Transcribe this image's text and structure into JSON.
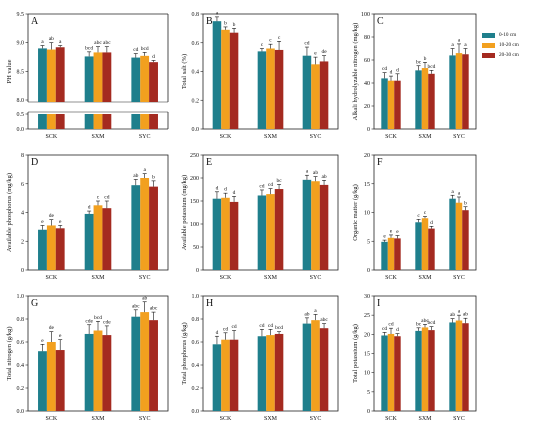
{
  "legend": {
    "items": [
      {
        "label": "0-10 cm",
        "color": "#1f7f8c"
      },
      {
        "label": "10-20 cm",
        "color": "#f2a01f"
      },
      {
        "label": "20-30 cm",
        "color": "#a42a20"
      }
    ]
  },
  "chart_data": [
    {
      "panel": "A",
      "type": "bar",
      "ylabel": "PH value",
      "categories": [
        "SCK",
        "SXM",
        "SYC"
      ],
      "broken_axis": true,
      "yticks_upper": [
        "8.0",
        "8.5",
        "9.0",
        "9.5"
      ],
      "ylim_upper": [
        8.0,
        9.5
      ],
      "yticks_lower": [
        "0.0",
        "0.5"
      ],
      "ylim_lower": [
        0.0,
        0.5
      ],
      "series": [
        {
          "values": [
            8.9,
            8.76,
            8.74
          ],
          "errors": [
            0.05,
            0.08,
            0.07
          ],
          "letters": [
            "a",
            "bcd",
            "cd"
          ]
        },
        {
          "values": [
            8.88,
            8.83,
            8.77
          ],
          "errors": [
            0.12,
            0.1,
            0.06
          ],
          "letters": [
            "ab",
            "abc",
            "bcd"
          ]
        },
        {
          "values": [
            8.92,
            8.83,
            8.66
          ],
          "errors": [
            0.03,
            0.1,
            0.03
          ],
          "letters": [
            "a",
            "abc",
            "d"
          ]
        }
      ]
    },
    {
      "panel": "B",
      "type": "bar",
      "ylabel": "Total salt (%)",
      "categories": [
        "SCK",
        "SXM",
        "SYC"
      ],
      "ylim": [
        0.0,
        0.8
      ],
      "yticks": [
        "0.0",
        "0.2",
        "0.4",
        "0.6",
        "0.8"
      ],
      "series": [
        {
          "values": [
            0.75,
            0.54,
            0.51
          ],
          "errors": [
            0.03,
            0.02,
            0.06
          ],
          "letters": [
            "a",
            "c",
            "cd"
          ]
        },
        {
          "values": [
            0.69,
            0.56,
            0.45
          ],
          "errors": [
            0.02,
            0.03,
            0.05
          ],
          "letters": [
            "b",
            "c",
            "e"
          ]
        },
        {
          "values": [
            0.67,
            0.55,
            0.47
          ],
          "errors": [
            0.03,
            0.06,
            0.04
          ],
          "letters": [
            "b",
            "c",
            "de"
          ]
        }
      ]
    },
    {
      "panel": "C",
      "type": "bar",
      "ylabel": "Alkali hydrolyzable nitrogen (mg/kg)",
      "categories": [
        "SCK",
        "SXM",
        "SYC"
      ],
      "ylim": [
        0,
        100
      ],
      "yticks": [
        "0",
        "20",
        "40",
        "60",
        "80",
        "100"
      ],
      "series": [
        {
          "values": [
            44,
            51,
            64
          ],
          "errors": [
            5,
            4,
            6
          ],
          "letters": [
            "cd",
            "bc",
            "a"
          ]
        },
        {
          "values": [
            42,
            53,
            66
          ],
          "errors": [
            4,
            5,
            8
          ],
          "letters": [
            "d",
            "b",
            "a"
          ]
        },
        {
          "values": [
            42,
            48,
            65
          ],
          "errors": [
            6,
            3,
            5
          ],
          "letters": [
            "d",
            "bcd",
            "a"
          ]
        }
      ]
    },
    {
      "panel": "D",
      "type": "bar",
      "ylabel": "Available phosphorus (mg/kg)",
      "categories": [
        "SCK",
        "SXM",
        "SYC"
      ],
      "ylim": [
        0,
        8
      ],
      "yticks": [
        "0",
        "2",
        "4",
        "6",
        "8"
      ],
      "series": [
        {
          "values": [
            2.8,
            3.9,
            5.9
          ],
          "errors": [
            0.3,
            0.2,
            0.4
          ],
          "letters": [
            "e",
            "d",
            "ab"
          ]
        },
        {
          "values": [
            3.1,
            4.5,
            6.4
          ],
          "errors": [
            0.4,
            0.3,
            0.3
          ],
          "letters": [
            "de",
            "c",
            "a"
          ]
        },
        {
          "values": [
            2.9,
            4.3,
            5.8
          ],
          "errors": [
            0.2,
            0.5,
            0.4
          ],
          "letters": [
            "e",
            "cd",
            "b"
          ]
        }
      ]
    },
    {
      "panel": "E",
      "type": "bar",
      "ylabel": "Available potassium (mg/kg)",
      "categories": [
        "SCK",
        "SXM",
        "SYC"
      ],
      "ylim": [
        0,
        250
      ],
      "yticks": [
        "0",
        "50",
        "100",
        "150",
        "200",
        "250"
      ],
      "series": [
        {
          "values": [
            155,
            162,
            196
          ],
          "errors": [
            15,
            12,
            10
          ],
          "letters": [
            "d",
            "cd",
            "a"
          ]
        },
        {
          "values": [
            157,
            165,
            193
          ],
          "errors": [
            10,
            12,
            10
          ],
          "letters": [
            "d",
            "cd",
            "ab"
          ]
        },
        {
          "values": [
            148,
            176,
            185
          ],
          "errors": [
            12,
            10,
            10
          ],
          "letters": [
            "d",
            "bc",
            "ab"
          ]
        }
      ]
    },
    {
      "panel": "F",
      "type": "bar",
      "ylabel": "Organic matter (g/kg)",
      "categories": [
        "SCK",
        "SXM",
        "SYC"
      ],
      "ylim": [
        0,
        20
      ],
      "yticks": [
        "0",
        "5",
        "10",
        "15",
        "20"
      ],
      "series": [
        {
          "values": [
            4.9,
            8.3,
            12.4
          ],
          "errors": [
            0.3,
            0.5,
            0.6
          ],
          "letters": [
            "e",
            "c",
            "a"
          ]
        },
        {
          "values": [
            5.6,
            9.0,
            11.7
          ],
          "errors": [
            0.5,
            0.3,
            1.0
          ],
          "letters": [
            "e",
            "c",
            "a"
          ]
        },
        {
          "values": [
            5.5,
            7.2,
            10.4
          ],
          "errors": [
            0.5,
            0.4,
            0.6
          ],
          "letters": [
            "e",
            "d",
            "b"
          ]
        }
      ]
    },
    {
      "panel": "G",
      "type": "bar",
      "ylabel": "Total nitrogen (g/kg)",
      "categories": [
        "SCK",
        "SXM",
        "SYC"
      ],
      "ylim": [
        0.0,
        1.0
      ],
      "yticks": [
        "0.0",
        "0.2",
        "0.4",
        "0.6",
        "0.8",
        "1.0"
      ],
      "series": [
        {
          "values": [
            0.52,
            0.67,
            0.82
          ],
          "errors": [
            0.06,
            0.08,
            0.06
          ],
          "letters": [
            "e",
            "cde",
            "abc"
          ]
        },
        {
          "values": [
            0.6,
            0.7,
            0.86
          ],
          "errors": [
            0.09,
            0.08,
            0.09
          ],
          "letters": [
            "de",
            "bcd",
            "ab"
          ]
        },
        {
          "values": [
            0.53,
            0.66,
            0.79
          ],
          "errors": [
            0.09,
            0.08,
            0.07
          ],
          "letters": [
            "e",
            "cde",
            "abc"
          ]
        }
      ]
    },
    {
      "panel": "H",
      "type": "bar",
      "ylabel": "Total phosphorus (g/kg)",
      "categories": [
        "SCK",
        "SXM",
        "SYC"
      ],
      "ylim": [
        0.0,
        1.0
      ],
      "yticks": [
        "0.0",
        "0.2",
        "0.4",
        "0.6",
        "0.8",
        "1.0"
      ],
      "series": [
        {
          "values": [
            0.58,
            0.65,
            0.76
          ],
          "errors": [
            0.07,
            0.06,
            0.05
          ],
          "letters": [
            "d",
            "cd",
            "ab"
          ]
        },
        {
          "values": [
            0.62,
            0.66,
            0.79
          ],
          "errors": [
            0.06,
            0.05,
            0.05
          ],
          "letters": [
            "cd",
            "cd",
            "a"
          ]
        },
        {
          "values": [
            0.62,
            0.67,
            0.72
          ],
          "errors": [
            0.08,
            0.02,
            0.04
          ],
          "letters": [
            "cd",
            "bcd",
            "abc"
          ]
        }
      ]
    },
    {
      "panel": "I",
      "type": "bar",
      "ylabel": "Total potassium (g/kg)",
      "categories": [
        "SCK",
        "SXM",
        "SYC"
      ],
      "ylim": [
        0,
        30
      ],
      "yticks": [
        "0",
        "5",
        "10",
        "15",
        "20",
        "25",
        "30"
      ],
      "series": [
        {
          "values": [
            19.7,
            20.9,
            23.1
          ],
          "errors": [
            0.8,
            0.8,
            1.0
          ],
          "letters": [
            "cd",
            "bc",
            "ab"
          ]
        },
        {
          "values": [
            20.1,
            21.8,
            23.6
          ],
          "errors": [
            1.5,
            0.8,
            1.4
          ],
          "letters": [
            "cd",
            "abc",
            "a"
          ]
        },
        {
          "values": [
            19.5,
            21.1,
            22.9
          ],
          "errors": [
            0.7,
            0.9,
            1.3
          ],
          "letters": [
            "d",
            "bcd",
            "ab"
          ]
        }
      ]
    }
  ]
}
